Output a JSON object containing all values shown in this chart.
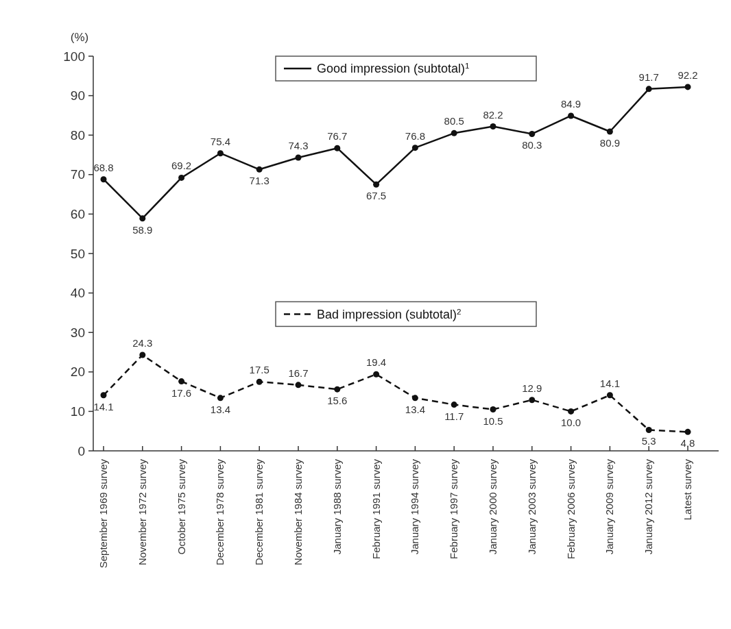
{
  "chart_data": {
    "type": "line",
    "ylabel": "(%)",
    "categories": [
      "September 1969 survey",
      "November 1972 survey",
      "October 1975 survey",
      "December 1978 survey",
      "December 1981 survey",
      "November 1984 survey",
      "January 1988 survey",
      "February 1991 survey",
      "January 1994 survey",
      "February 1997 survey",
      "January 2000 survey",
      "January 2003 survey",
      "February 2006 survey",
      "January 2009 survey",
      "January 2012 survey",
      "Latest survey"
    ],
    "series": [
      {
        "name": "Good impression (subtotal)$^{1}$",
        "color": "#111111",
        "line_style": "solid",
        "values": [
          68.8,
          58.9,
          69.2,
          75.4,
          71.3,
          74.3,
          76.7,
          67.5,
          76.8,
          80.5,
          82.2,
          80.3,
          84.9,
          80.9,
          91.7,
          92.2
        ],
        "value_labels": [
          "68.8",
          "58.9",
          "69.2",
          "75.4",
          "71.3",
          "74.3",
          "76.7",
          "67.5",
          "76.8",
          "80.5",
          "82.2",
          "80.3",
          "84.9",
          "80.9",
          "91.7",
          "92.2"
        ]
      },
      {
        "name": "Bad impression (subtotal)$^{2}$",
        "color": "#111111",
        "line_style": "dashed",
        "values": [
          14.1,
          24.3,
          17.6,
          13.4,
          17.5,
          16.7,
          15.6,
          19.4,
          13.4,
          11.7,
          10.5,
          12.9,
          10.0,
          14.1,
          5.3,
          4.8
        ],
        "value_labels": [
          "14.1",
          "24.3",
          "17.6",
          "13.4",
          "17.5",
          "16.7",
          "15.6",
          "19.4",
          "13.4",
          "11.7",
          "10.5",
          "12.9",
          "10.0",
          "14.1",
          "5.3",
          "4.8"
        ]
      }
    ],
    "ylim": [
      0,
      100
    ],
    "yticks": [
      0,
      10,
      20,
      30,
      40,
      50,
      60,
      70,
      80,
      90,
      100
    ],
    "marker": "circle",
    "grid": false,
    "legend": "top"
  }
}
